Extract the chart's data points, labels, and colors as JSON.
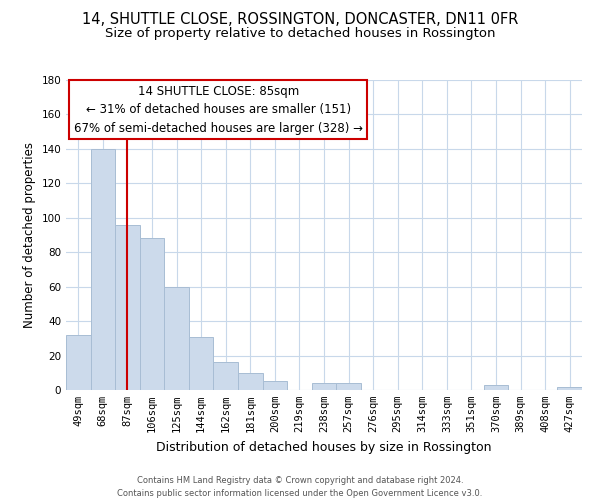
{
  "title": "14, SHUTTLE CLOSE, ROSSINGTON, DONCASTER, DN11 0FR",
  "subtitle": "Size of property relative to detached houses in Rossington",
  "xlabel": "Distribution of detached houses by size in Rossington",
  "ylabel": "Number of detached properties",
  "categories": [
    "49sqm",
    "68sqm",
    "87sqm",
    "106sqm",
    "125sqm",
    "144sqm",
    "162sqm",
    "181sqm",
    "200sqm",
    "219sqm",
    "238sqm",
    "257sqm",
    "276sqm",
    "295sqm",
    "314sqm",
    "333sqm",
    "351sqm",
    "370sqm",
    "389sqm",
    "408sqm",
    "427sqm"
  ],
  "values": [
    32,
    140,
    96,
    88,
    60,
    31,
    16,
    10,
    5,
    0,
    4,
    4,
    0,
    0,
    0,
    0,
    0,
    3,
    0,
    0,
    2
  ],
  "bar_color": "#ccdaeb",
  "bar_edge_color": "#a8bdd4",
  "vline_x_index": 2,
  "vline_color": "#cc0000",
  "ylim": [
    0,
    180
  ],
  "yticks": [
    0,
    20,
    40,
    60,
    80,
    100,
    120,
    140,
    160,
    180
  ],
  "annotation_title": "14 SHUTTLE CLOSE: 85sqm",
  "annotation_line1": "← 31% of detached houses are smaller (151)",
  "annotation_line2": "67% of semi-detached houses are larger (328) →",
  "annotation_box_color": "#ffffff",
  "annotation_box_edge": "#cc0000",
  "footer_line1": "Contains HM Land Registry data © Crown copyright and database right 2024.",
  "footer_line2": "Contains public sector information licensed under the Open Government Licence v3.0.",
  "background_color": "#ffffff",
  "grid_color": "#c8d8ea",
  "title_fontsize": 10.5,
  "subtitle_fontsize": 9.5,
  "xlabel_fontsize": 9,
  "ylabel_fontsize": 8.5,
  "tick_fontsize": 7.5,
  "footer_fontsize": 6,
  "ann_fontsize": 8.5
}
